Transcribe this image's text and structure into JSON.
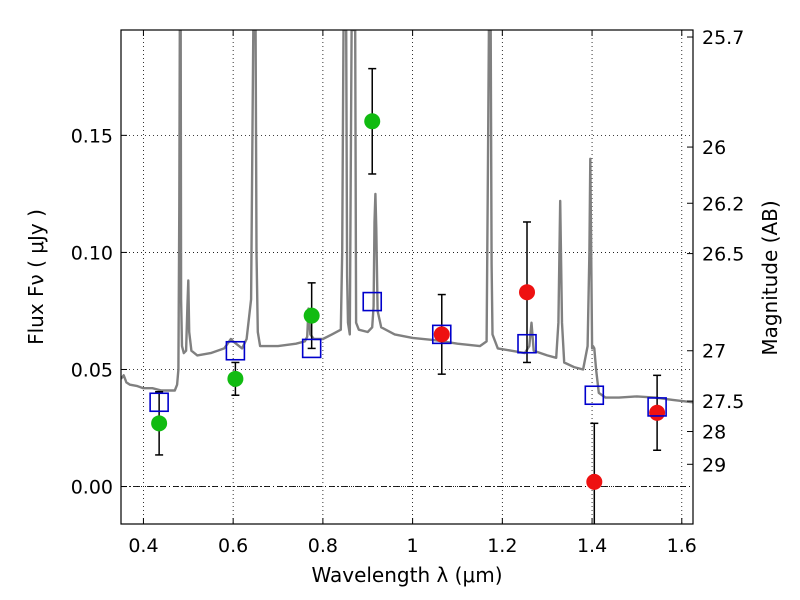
{
  "chart_data": {
    "type": "scatter",
    "xlabel": "Wavelength  λ (μm)",
    "ylabel": "Flux  Fν  ( μJy )",
    "y2label": "Magnitude (AB)",
    "xlim": [
      0.35,
      1.625
    ],
    "ylim": [
      -0.016,
      0.195
    ],
    "x_ticks": [
      {
        "value": 0.4,
        "label": "0.4"
      },
      {
        "value": 0.6,
        "label": "0.6"
      },
      {
        "value": 0.8,
        "label": "0.8"
      },
      {
        "value": 1.0,
        "label": "1"
      },
      {
        "value": 1.2,
        "label": "1.2"
      },
      {
        "value": 1.4,
        "label": "1.4"
      },
      {
        "value": 1.6,
        "label": "1.6"
      }
    ],
    "y_ticks": [
      {
        "value": 0.0,
        "label": "0.00"
      },
      {
        "value": 0.05,
        "label": "0.05"
      },
      {
        "value": 0.1,
        "label": "0.10"
      },
      {
        "value": 0.15,
        "label": "0.15"
      }
    ],
    "y2_ticks": [
      {
        "label": "25.7",
        "flux": 0.192
      },
      {
        "label": "26",
        "flux": 0.145
      },
      {
        "label": "26.2",
        "flux": 0.121
      },
      {
        "label": "26.5",
        "flux": 0.0995
      },
      {
        "label": "27",
        "flux": 0.058
      },
      {
        "label": "27.5",
        "flux": 0.0365
      },
      {
        "label": "28",
        "flux": 0.0235
      },
      {
        "label": "29",
        "flux": 0.0095
      }
    ],
    "grid": true,
    "zero_line": true,
    "colors": {
      "spectrum": "#808080",
      "green_points": "#11bb11",
      "red_points": "#ee1111",
      "model_squares": "#0000cc",
      "errorbar": "#000000"
    },
    "series": [
      {
        "style": "spectrum",
        "points": [
          [
            0.35,
            0.046
          ],
          [
            0.356,
            0.0475
          ],
          [
            0.362,
            0.0445
          ],
          [
            0.37,
            0.0435
          ],
          [
            0.385,
            0.043
          ],
          [
            0.4,
            0.042
          ],
          [
            0.42,
            0.042
          ],
          [
            0.44,
            0.041
          ],
          [
            0.46,
            0.041
          ],
          [
            0.47,
            0.041
          ],
          [
            0.475,
            0.0435
          ],
          [
            0.478,
            0.05
          ],
          [
            0.48,
            0.12
          ],
          [
            0.481,
            0.195
          ],
          [
            0.483,
            0.195
          ],
          [
            0.484,
            0.08
          ],
          [
            0.486,
            0.06
          ],
          [
            0.49,
            0.057
          ],
          [
            0.495,
            0.058
          ],
          [
            0.498,
            0.077
          ],
          [
            0.5,
            0.088
          ],
          [
            0.502,
            0.066
          ],
          [
            0.507,
            0.058
          ],
          [
            0.52,
            0.056
          ],
          [
            0.55,
            0.057
          ],
          [
            0.58,
            0.059
          ],
          [
            0.595,
            0.063
          ],
          [
            0.6,
            0.062
          ],
          [
            0.62,
            0.059
          ],
          [
            0.63,
            0.063
          ],
          [
            0.64,
            0.08
          ],
          [
            0.645,
            0.195
          ],
          [
            0.65,
            0.195
          ],
          [
            0.652,
            0.1
          ],
          [
            0.655,
            0.066
          ],
          [
            0.66,
            0.06
          ],
          [
            0.7,
            0.06
          ],
          [
            0.74,
            0.061
          ],
          [
            0.76,
            0.062
          ],
          [
            0.765,
            0.064
          ],
          [
            0.768,
            0.076
          ],
          [
            0.772,
            0.065
          ],
          [
            0.78,
            0.063
          ],
          [
            0.8,
            0.063
          ],
          [
            0.82,
            0.065
          ],
          [
            0.84,
            0.067
          ],
          [
            0.843,
            0.1
          ],
          [
            0.846,
            0.195
          ],
          [
            0.852,
            0.195
          ],
          [
            0.854,
            0.09
          ],
          [
            0.856,
            0.07
          ],
          [
            0.86,
            0.065
          ],
          [
            0.864,
            0.195
          ],
          [
            0.872,
            0.195
          ],
          [
            0.874,
            0.07
          ],
          [
            0.88,
            0.067
          ],
          [
            0.9,
            0.066
          ],
          [
            0.91,
            0.068
          ],
          [
            0.913,
            0.077
          ],
          [
            0.915,
            0.113
          ],
          [
            0.917,
            0.125
          ],
          [
            0.919,
            0.11
          ],
          [
            0.922,
            0.075
          ],
          [
            0.93,
            0.068
          ],
          [
            0.96,
            0.065
          ],
          [
            1.0,
            0.0635
          ],
          [
            1.05,
            0.0625
          ],
          [
            1.1,
            0.061
          ],
          [
            1.15,
            0.06
          ],
          [
            1.165,
            0.062
          ],
          [
            1.168,
            0.14
          ],
          [
            1.17,
            0.195
          ],
          [
            1.174,
            0.195
          ],
          [
            1.176,
            0.095
          ],
          [
            1.178,
            0.065
          ],
          [
            1.19,
            0.059
          ],
          [
            1.22,
            0.058
          ],
          [
            1.25,
            0.057
          ],
          [
            1.26,
            0.06
          ],
          [
            1.265,
            0.07
          ],
          [
            1.27,
            0.058
          ],
          [
            1.3,
            0.056
          ],
          [
            1.32,
            0.055
          ],
          [
            1.325,
            0.07
          ],
          [
            1.329,
            0.122
          ],
          [
            1.333,
            0.07
          ],
          [
            1.338,
            0.053
          ],
          [
            1.36,
            0.051
          ],
          [
            1.38,
            0.05
          ],
          [
            1.39,
            0.06
          ],
          [
            1.394,
            0.1
          ],
          [
            1.396,
            0.14
          ],
          [
            1.398,
            0.1
          ],
          [
            1.4,
            0.059
          ],
          [
            1.402,
            0.06
          ],
          [
            1.405,
            0.059
          ],
          [
            1.409,
            0.05
          ],
          [
            1.415,
            0.04
          ],
          [
            1.43,
            0.038
          ],
          [
            1.46,
            0.038
          ],
          [
            1.5,
            0.0385
          ],
          [
            1.54,
            0.038
          ],
          [
            1.58,
            0.037
          ],
          [
            1.625,
            0.036
          ]
        ]
      },
      {
        "style": "green_points",
        "points": [
          {
            "x": 0.435,
            "y": 0.027,
            "yerr": 0.0135
          },
          {
            "x": 0.605,
            "y": 0.046,
            "yerr": 0.007
          },
          {
            "x": 0.775,
            "y": 0.073,
            "yerr": 0.014
          },
          {
            "x": 0.91,
            "y": 0.156,
            "yerr": 0.0225
          }
        ]
      },
      {
        "style": "red_points",
        "points": [
          {
            "x": 1.065,
            "y": 0.065,
            "yerr": 0.017
          },
          {
            "x": 1.255,
            "y": 0.083,
            "yerr": 0.03
          },
          {
            "x": 1.405,
            "y": 0.002,
            "yerr": 0.025
          },
          {
            "x": 1.545,
            "y": 0.0315,
            "yerr": 0.016
          }
        ]
      },
      {
        "style": "model_squares",
        "points": [
          {
            "x": 0.435,
            "y": 0.036
          },
          {
            "x": 0.605,
            "y": 0.058
          },
          {
            "x": 0.775,
            "y": 0.059
          },
          {
            "x": 0.91,
            "y": 0.079
          },
          {
            "x": 1.065,
            "y": 0.065
          },
          {
            "x": 1.255,
            "y": 0.061
          },
          {
            "x": 1.405,
            "y": 0.039
          },
          {
            "x": 1.545,
            "y": 0.034
          }
        ]
      }
    ]
  }
}
